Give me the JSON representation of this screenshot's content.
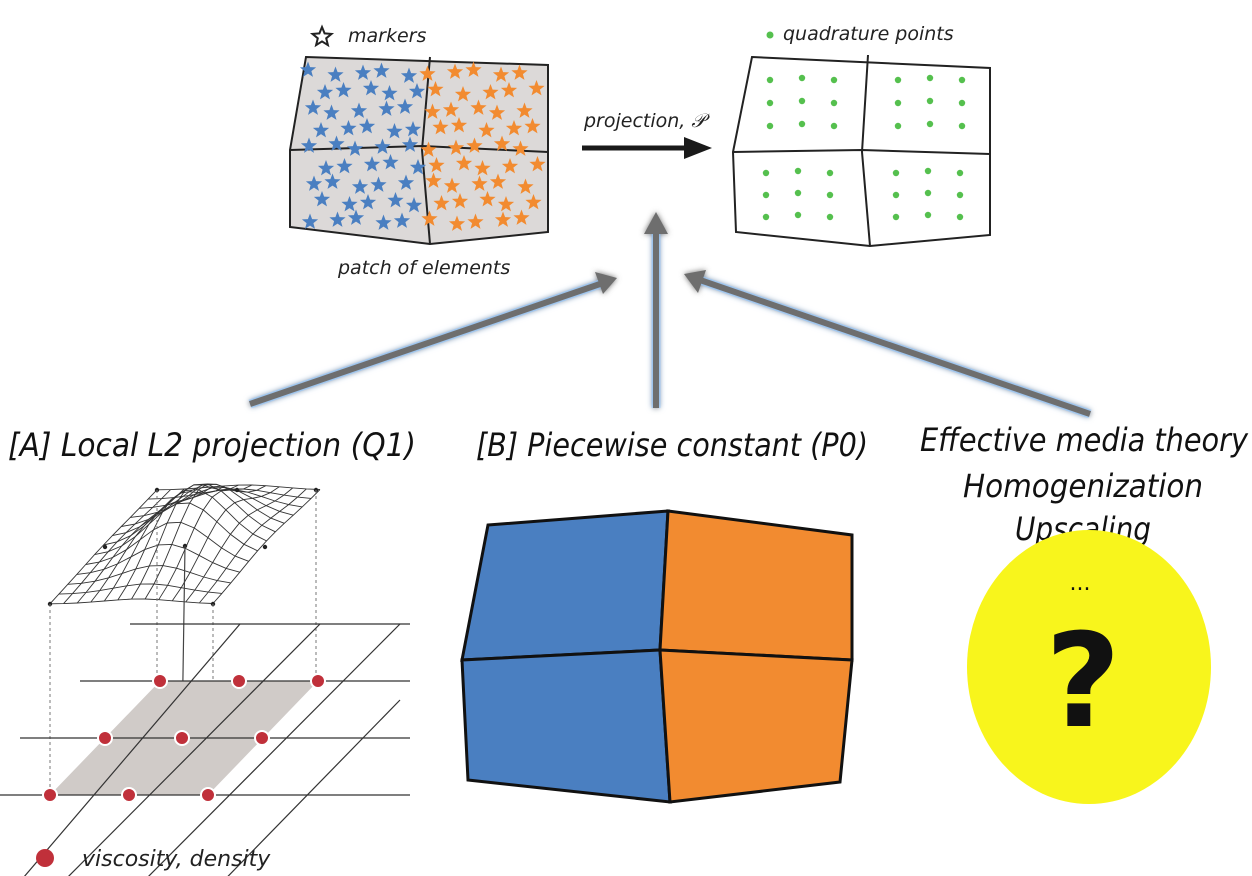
{
  "top": {
    "markers_label": "markers",
    "quadrature_label": "quadrature points",
    "projection_label": "projection, 𝒫",
    "patch_label": "patch of elements"
  },
  "methods": {
    "a_label": "[A] Local L2 projection (Q1)",
    "b_label": "[B] Piecewise constant (P0)",
    "c_line1": "Effective media theory",
    "c_line2": "Homogenization",
    "c_line3": "Upscaling",
    "c_ellipsis": "...",
    "c_question": "?"
  },
  "legend": {
    "viscosity_label": "viscosity, density"
  },
  "colors": {
    "blue": "#4a7fc1",
    "orange": "#f28b30",
    "green": "#55c04e",
    "red_node": "#c0303a",
    "yellow": "#f8f51c",
    "gray_patch": "#dcd9d8",
    "arrow": "#6e6e6e"
  }
}
